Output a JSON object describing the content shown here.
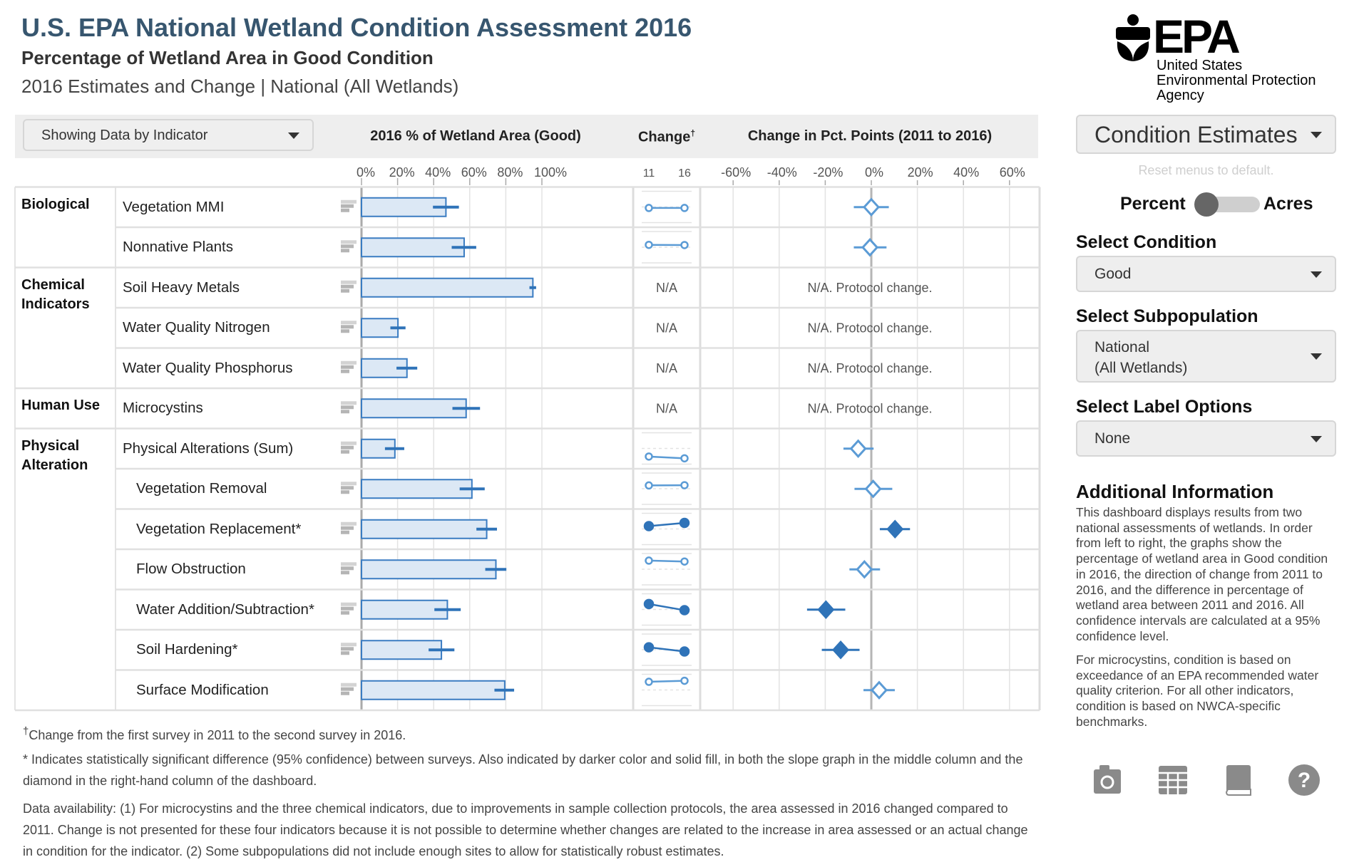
{
  "header": {
    "title": "U.S. EPA National Wetland Condition Assessment 2016",
    "subtitle": "Percentage of Wetland Area in Good Condition",
    "subtitle2": "2016 Estimates and Change | National (All Wetlands)"
  },
  "view_dropdown": {
    "value": "Showing Data by Indicator"
  },
  "columns": {
    "pct": "2016 % of Wetland Area (Good)",
    "change": "Change",
    "change_mark": "†",
    "diff": "Change in Pct. Points (2011 to 2016)",
    "slope_years": [
      "11",
      "16"
    ]
  },
  "colors": {
    "bar_fill": "#dce8f5",
    "bar_stroke": "#3a7cc2",
    "significant": "#2f73b8",
    "not_significant": "#5b9bd5"
  },
  "chart_data": [
    {
      "type": "bar",
      "title": "2016 % of Wetland Area (Good)",
      "xlim": [
        0,
        100
      ],
      "ticks": [
        "0%",
        "20%",
        "40%",
        "60%",
        "80%",
        "100%"
      ],
      "grid": true,
      "categories": [
        "Vegetation MMI",
        "Nonnative Plants",
        "Soil Heavy Metals",
        "Water Quality Nitrogen",
        "Water Quality Phosphorus",
        "Microcystins",
        "Physical Alterations (Sum)",
        "Vegetation Removal",
        "Vegetation Replacement*",
        "Flow Obstruction",
        "Water Addition/Subtraction*",
        "Soil Hardening*",
        "Surface Modification"
      ],
      "values": [
        46.8,
        56.9,
        95.0,
        20.2,
        25.2,
        58.0,
        18.5,
        61.2,
        69.4,
        74.5,
        47.6,
        44.3,
        79.4
      ],
      "ci": [
        [
          39.6,
          54.0
        ],
        [
          50.0,
          63.6
        ],
        [
          93.1,
          96.8
        ],
        [
          16.0,
          24.4
        ],
        [
          19.4,
          30.9
        ],
        [
          50.4,
          65.7
        ],
        [
          13.0,
          23.7
        ],
        [
          54.4,
          68.3
        ],
        [
          63.7,
          75.1
        ],
        [
          68.6,
          80.3
        ],
        [
          40.4,
          55.0
        ],
        [
          37.2,
          51.5
        ],
        [
          73.7,
          84.6
        ]
      ]
    },
    {
      "type": "line",
      "title": "Change",
      "x": [
        "11",
        "16"
      ],
      "ylim": [
        0,
        100
      ],
      "na_label": "N/A",
      "available": [
        true,
        true,
        false,
        false,
        false,
        false,
        true,
        true,
        true,
        true,
        true,
        true,
        true
      ],
      "significant": [
        false,
        false,
        false,
        false,
        false,
        false,
        false,
        false,
        true,
        false,
        true,
        true,
        false
      ]
    },
    {
      "type": "scatter",
      "title": "Change in Pct. Points (2011 to 2016)",
      "xlim": [
        -70,
        70
      ],
      "ticks": [
        "-60%",
        "-40%",
        "-20%",
        "0%",
        "20%",
        "40%",
        "60%"
      ],
      "tick_values": [
        -60,
        -40,
        -20,
        0,
        20,
        40,
        60
      ],
      "grid": true,
      "values": [
        0.0,
        -0.6,
        null,
        null,
        null,
        null,
        -5.7,
        0.8,
        10.3,
        -3.0,
        -19.7,
        -13.3,
        3.4
      ],
      "ci": [
        [
          -7.6,
          7.6
        ],
        [
          -7.6,
          6.6
        ],
        null,
        null,
        null,
        null,
        [
          -12.1,
          1.0
        ],
        [
          -7.3,
          9.1
        ],
        [
          3.7,
          16.8
        ],
        [
          -9.5,
          3.8
        ],
        [
          -27.9,
          -11.3
        ],
        [
          -21.5,
          -5.1
        ],
        [
          -3.4,
          10.2
        ]
      ],
      "na_label": "N/A. Protocol change."
    }
  ],
  "groups": [
    {
      "label": "Biological",
      "rows": 2
    },
    {
      "label": "Chemical Indicators",
      "rows": 3
    },
    {
      "label": "Human Use",
      "rows": 1
    },
    {
      "label": "Physical Alteration",
      "rows": 7
    }
  ],
  "indented_rows": [
    7,
    8,
    9,
    10,
    11,
    12
  ],
  "footnotes": {
    "dagger": "†",
    "change": "Change from the first survey in 2011 to the second survey in 2016.",
    "significance": "*  Indicates statistically significant difference (95% confidence) between surveys. Also indicated by darker color and solid fill, in both the slope graph in the middle column and the diamond in the right-hand column of the dashboard.",
    "availability": "Data availability: (1) For microcystins and the three chemical indicators, due to improvements in sample collection protocols, the area assessed in 2016 changed compared to 2011. Change is not presented for these four indicators because it is not possible to determine whether changes are related to the increase in area assessed or an actual change in condition for the indicator. (2) Some subpopulations did not include enough sites to allow for statistically robust estimates."
  },
  "logo": {
    "mark": "EPA",
    "line1": "United States",
    "line2": "Environmental Protection",
    "line3": "Agency"
  },
  "sidebar": {
    "mode_dropdown": "Condition Estimates",
    "reset_link": "Reset menus to default.",
    "toggle": {
      "left": "Percent",
      "right": "Acres",
      "selected": "Percent"
    },
    "condition": {
      "label": "Select Condition",
      "value": "Good"
    },
    "subpopulation": {
      "label": "Select Subpopulation",
      "value_line1": "National",
      "value_line2": "(All Wetlands)"
    },
    "label_options": {
      "label": "Select Label Options",
      "value": "None"
    },
    "additional_info": {
      "title": "Additional Information",
      "p1": "This dashboard displays results from two national assessments of wetlands. In order from left to right, the graphs show the percentage of wetland area in Good condition in 2016, the direction of change from 2011 to 2016, and the difference in percentage of wetland area between 2011 and 2016. All confidence intervals are calculated at a 95% confidence level.",
      "p2": "For microcystins, condition is based on exceedance of an EPA recommended water quality criterion. For all other indicators, condition is based on NWCA-specific benchmarks."
    },
    "tools": [
      "camera-icon",
      "table-icon",
      "book-icon",
      "help-icon"
    ]
  }
}
